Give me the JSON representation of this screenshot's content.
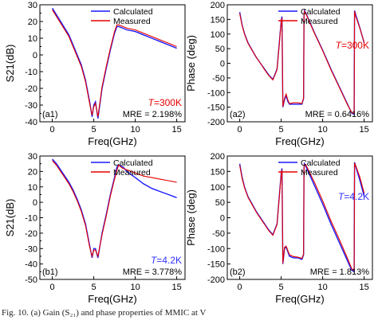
{
  "caption": "Fig. 10.   (a) Gain (S₂₁) and phase properties of MMIC at V",
  "colors": {
    "calculated": "#1a1aff",
    "measured": "#e60000",
    "axis": "#000000",
    "annot300": "#e60000",
    "annot4": "#3333ff"
  },
  "chart_data": [
    {
      "type": "line",
      "panel": "a1",
      "xlabel": "Freq(GHz)",
      "ylabel": "S21(dB)",
      "xlim": [
        -1.5,
        16
      ],
      "ylim": [
        -40,
        30
      ],
      "xticks": [
        0,
        5,
        10,
        15
      ],
      "yticks": [
        -40,
        -35,
        -30,
        -25,
        -20,
        -15,
        -10,
        -5,
        0,
        5,
        10,
        15,
        20,
        25,
        30
      ],
      "legend": "top-right",
      "annotations": {
        "temp_prefix": "T",
        "temp_value": "=300K",
        "mre": "MRE = 2.198%",
        "panel_label": "(a1)"
      },
      "series": [
        {
          "name": "Calculated",
          "x": [
            0,
            0.5,
            1,
            1.5,
            2,
            2.5,
            3,
            3.5,
            4,
            4.5,
            4.8,
            5,
            5.2,
            5.5,
            6,
            6.5,
            7,
            7.5,
            7.8,
            8,
            8.5,
            9,
            10,
            11,
            12,
            13,
            14,
            15
          ],
          "y": [
            28,
            24,
            20,
            16,
            12,
            6,
            0,
            -6,
            -15,
            -28,
            -37,
            -30,
            -28,
            -38,
            -20,
            -8,
            3,
            13,
            17,
            17,
            16,
            15,
            14,
            12,
            10,
            8,
            6,
            4
          ]
        },
        {
          "name": "Measured",
          "x": [
            0,
            0.5,
            1,
            1.5,
            2,
            2.5,
            3,
            3.5,
            4,
            4.5,
            4.8,
            5,
            5.2,
            5.5,
            6,
            6.5,
            7,
            7.5,
            7.8,
            8,
            8.5,
            9,
            10,
            11,
            12,
            13,
            14,
            15
          ],
          "y": [
            27,
            23,
            19,
            15,
            11,
            5,
            -1,
            -7,
            -16,
            -29,
            -36,
            -31,
            -29,
            -37,
            -19,
            -7,
            4,
            14,
            18,
            18,
            17,
            16,
            15,
            13,
            11,
            9,
            7,
            5
          ]
        }
      ]
    },
    {
      "type": "line",
      "panel": "a2",
      "xlabel": "Freq(GHz)",
      "ylabel": "Phase (deg)",
      "xlim": [
        -1.5,
        16
      ],
      "ylim": [
        -200,
        200
      ],
      "xticks": [
        0,
        5,
        10,
        15
      ],
      "yticks": [
        -200,
        -150,
        -100,
        -50,
        0,
        50,
        100,
        150,
        200
      ],
      "legend": "top-right",
      "annotations": {
        "temp_prefix": "T",
        "temp_value": "=300K",
        "mre": "MRE = 0.6416%",
        "panel_label": "(a2)"
      },
      "series": [
        {
          "name": "Calculated",
          "x": [
            0,
            0.3,
            0.6,
            1,
            1.5,
            2,
            2.5,
            3,
            3.5,
            4,
            4.5,
            5,
            5.1,
            5.2,
            5.4,
            5.6,
            5.8,
            6,
            6.5,
            7,
            7.5,
            7.7,
            7.75,
            7.8,
            8,
            9,
            10,
            11,
            12,
            13,
            13.5,
            13.8,
            13.85,
            13.9,
            14,
            14.5,
            15
          ],
          "y": [
            175,
            130,
            100,
            70,
            45,
            20,
            0,
            -20,
            -40,
            -55,
            -20,
            145,
            160,
            -150,
            -125,
            -110,
            -130,
            -140,
            -140,
            -140,
            -140,
            -120,
            160,
            180,
            170,
            105,
            45,
            -20,
            -80,
            -140,
            -170,
            -175,
            180,
            175,
            165,
            120,
            70
          ]
        },
        {
          "name": "Measured",
          "x": [
            0,
            0.3,
            0.6,
            1,
            1.5,
            2,
            2.5,
            3,
            3.5,
            4,
            4.5,
            5,
            5.1,
            5.2,
            5.4,
            5.6,
            5.8,
            6,
            6.5,
            7,
            7.5,
            7.7,
            7.75,
            7.8,
            8,
            9,
            10,
            11,
            12,
            13,
            13.5,
            13.8,
            13.85,
            13.9,
            14,
            14.5,
            15
          ],
          "y": [
            170,
            128,
            98,
            68,
            44,
            20,
            0,
            -22,
            -42,
            -57,
            -22,
            140,
            155,
            -148,
            -120,
            -105,
            -125,
            -138,
            -135,
            -135,
            -138,
            -118,
            158,
            178,
            168,
            103,
            43,
            -22,
            -82,
            -142,
            -168,
            -172,
            178,
            170,
            160,
            118,
            72
          ]
        }
      ]
    },
    {
      "type": "line",
      "panel": "b1",
      "xlabel": "Freq(GHz)",
      "ylabel": "S21(dB)",
      "xlim": [
        -1.5,
        16
      ],
      "ylim": [
        -50,
        30
      ],
      "xticks": [
        0,
        5,
        10,
        15
      ],
      "yticks": [
        -50,
        -45,
        -40,
        -35,
        -30,
        -25,
        -20,
        -15,
        -10,
        -5,
        0,
        5,
        10,
        15,
        20,
        25,
        30
      ],
      "legend": "top-right",
      "annotations": {
        "temp_prefix": "T",
        "temp_value": "=4.2K",
        "mre": "MRE = 3.778%",
        "panel_label": "(b1)"
      },
      "series": [
        {
          "name": "Calculated",
          "x": [
            0,
            0.5,
            1,
            1.5,
            2,
            2.5,
            3,
            3.5,
            4,
            4.5,
            4.8,
            5,
            5.2,
            5.5,
            6,
            6.5,
            7,
            7.5,
            7.8,
            8,
            8.5,
            9,
            10,
            11,
            12,
            13,
            14,
            15
          ],
          "y": [
            28,
            25,
            21,
            17,
            13,
            8,
            2,
            -5,
            -14,
            -28,
            -36,
            -30,
            -30,
            -36,
            -20,
            -8,
            5,
            16,
            23,
            24,
            23,
            20,
            16,
            12,
            9,
            7,
            5,
            3
          ]
        },
        {
          "name": "Measured",
          "x": [
            0,
            0.5,
            1,
            1.5,
            2,
            2.5,
            3,
            3.5,
            4,
            4.5,
            4.8,
            5,
            5.2,
            5.5,
            6,
            6.5,
            7,
            7.5,
            7.8,
            8,
            8.5,
            9,
            10,
            11,
            12,
            13,
            14,
            15
          ],
          "y": [
            27,
            24,
            20,
            16,
            12,
            7,
            1,
            -6,
            -15,
            -29,
            -35,
            -31,
            -31,
            -35,
            -21,
            -9,
            4,
            15,
            21,
            24,
            22,
            21,
            19,
            17,
            16,
            15,
            14,
            13
          ]
        }
      ]
    },
    {
      "type": "line",
      "panel": "b2",
      "xlabel": "Freq(GHz)",
      "ylabel": "Phase (deg)",
      "xlim": [
        -1.5,
        16
      ],
      "ylim": [
        -200,
        200
      ],
      "xticks": [
        0,
        5,
        10,
        15
      ],
      "yticks": [
        -200,
        -150,
        -100,
        -50,
        0,
        50,
        100,
        150,
        200
      ],
      "legend": "top-right",
      "annotations": {
        "temp_prefix": "T",
        "temp_value": "=4.2K",
        "mre": "MRE = 1.813%",
        "panel_label": "(b2)"
      },
      "series": [
        {
          "name": "Calculated",
          "x": [
            0,
            0.3,
            0.6,
            1,
            1.5,
            2,
            2.5,
            3,
            3.5,
            4,
            4.5,
            5,
            5.1,
            5.2,
            5.4,
            5.6,
            5.8,
            6,
            6.5,
            7,
            7.5,
            7.7,
            7.75,
            7.8,
            8,
            9,
            10,
            11,
            12,
            13,
            13.5,
            13.8,
            13.85,
            13.9,
            14,
            14.5,
            15
          ],
          "y": [
            175,
            130,
            98,
            68,
            44,
            20,
            0,
            -20,
            -40,
            -55,
            -20,
            145,
            160,
            -150,
            -100,
            -95,
            -110,
            -125,
            -130,
            -130,
            -135,
            -120,
            160,
            175,
            165,
            105,
            45,
            -20,
            -80,
            -140,
            -170,
            -175,
            180,
            175,
            165,
            120,
            70
          ]
        },
        {
          "name": "Measured",
          "x": [
            0,
            0.3,
            0.6,
            1,
            1.5,
            2,
            2.5,
            3,
            3.5,
            4,
            4.5,
            5,
            5.1,
            5.2,
            5.4,
            5.6,
            5.8,
            6,
            6.5,
            7,
            7.5,
            7.7,
            7.75,
            7.8,
            8,
            9,
            10,
            11,
            12,
            13,
            13.5,
            13.8,
            13.85,
            13.9,
            14,
            14.5,
            15
          ],
          "y": [
            170,
            126,
            96,
            66,
            42,
            18,
            -2,
            -22,
            -42,
            -57,
            -22,
            140,
            155,
            -148,
            -96,
            -92,
            -106,
            -120,
            -126,
            -128,
            -132,
            -118,
            158,
            172,
            170,
            115,
            55,
            -10,
            -70,
            -132,
            -165,
            -172,
            178,
            172,
            168,
            130,
            80
          ]
        }
      ]
    }
  ]
}
